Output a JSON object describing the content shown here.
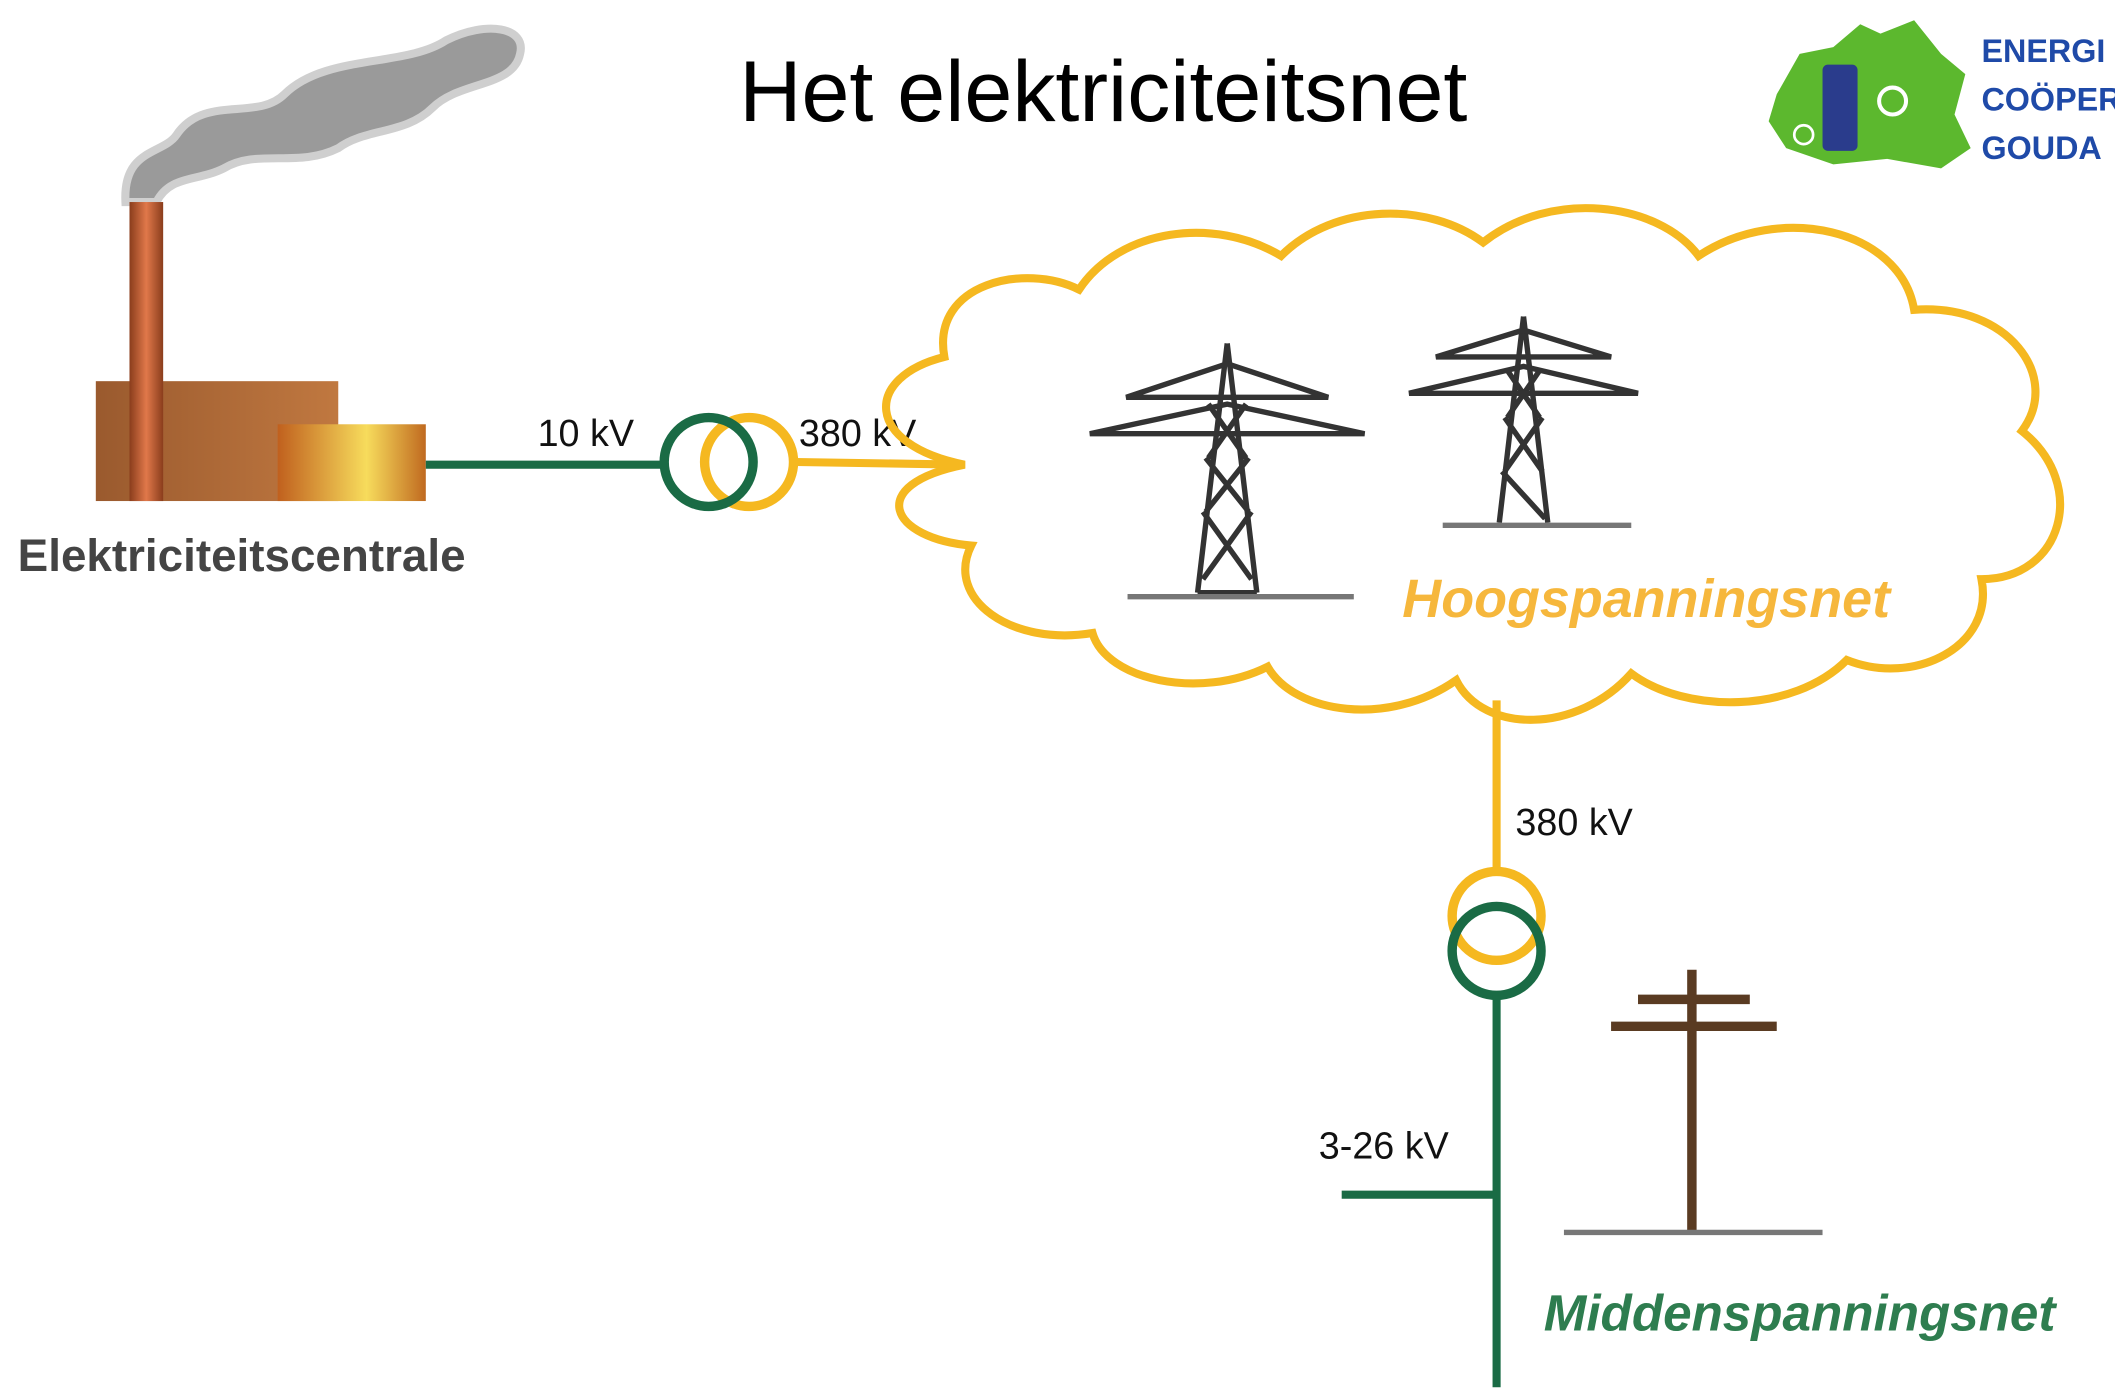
{
  "title": "Het elektriciteitsnet",
  "logo": {
    "lines": [
      "ENERGI",
      "COÖPER",
      "GOUDA"
    ]
  },
  "nodes": [
    {
      "label": "Elektriciteitscentrale"
    },
    {
      "label": "Hoogspanningsnet"
    },
    {
      "label": "Middenspanningsnet"
    }
  ],
  "voltages": [
    "10 kV",
    "380 kV",
    "380 kV",
    "3-26 kV"
  ]
}
